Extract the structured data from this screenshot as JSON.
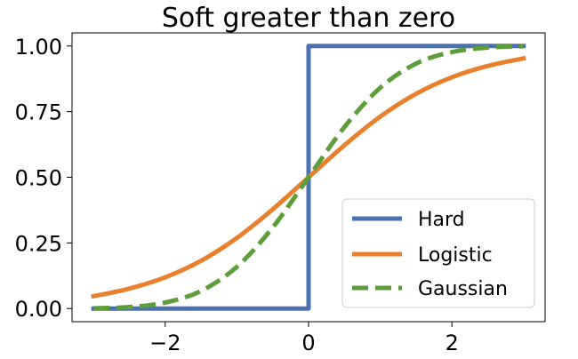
{
  "chart_data": {
    "type": "line",
    "title": "Soft greater than zero",
    "xlabel": "",
    "ylabel": "",
    "xlim": [
      -3.3,
      3.3
    ],
    "ylim": [
      -0.05,
      1.05
    ],
    "x_ticks": [
      -2,
      0,
      2
    ],
    "x_tick_labels": [
      "−2",
      "0",
      "2"
    ],
    "y_ticks": [
      0.0,
      0.25,
      0.5,
      0.75,
      1.0
    ],
    "y_tick_labels": [
      "0.00",
      "0.25",
      "0.50",
      "0.75",
      "1.00"
    ],
    "grid": false,
    "legend_position": "lower-right",
    "series": [
      {
        "name": "Hard",
        "color": "#4c72b0",
        "style": "solid",
        "x": [
          -3.0,
          0.0,
          0.0,
          3.0
        ],
        "y": [
          0.0,
          0.0,
          1.0,
          1.0
        ]
      },
      {
        "name": "Logistic",
        "color": "#e8802e",
        "style": "solid",
        "x": [
          -3.0,
          -2.5,
          -2.0,
          -1.5,
          -1.0,
          -0.5,
          0.0,
          0.5,
          1.0,
          1.5,
          2.0,
          2.5,
          3.0
        ],
        "y": [
          0.047,
          0.076,
          0.119,
          0.182,
          0.269,
          0.378,
          0.5,
          0.622,
          0.731,
          0.818,
          0.881,
          0.924,
          0.953
        ]
      },
      {
        "name": "Gaussian",
        "color": "#5e9e3a",
        "style": "dashed",
        "x": [
          -3.0,
          -2.5,
          -2.0,
          -1.5,
          -1.0,
          -0.5,
          0.0,
          0.5,
          1.0,
          1.5,
          2.0,
          2.5,
          3.0
        ],
        "y": [
          0.001,
          0.006,
          0.023,
          0.067,
          0.159,
          0.309,
          0.5,
          0.691,
          0.841,
          0.933,
          0.977,
          0.994,
          0.999
        ]
      }
    ]
  }
}
